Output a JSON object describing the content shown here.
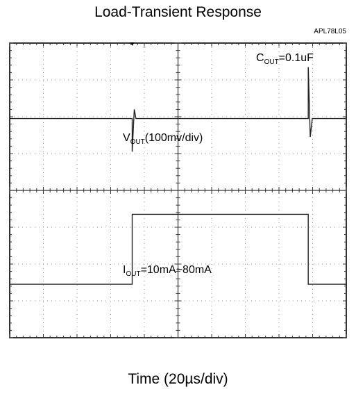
{
  "chart_data": {
    "type": "line",
    "title": "Load-Transient Response",
    "part_number": "APL78L05",
    "xlabel": "Time (20µs/div)",
    "grid": true,
    "divisions": {
      "x": 10,
      "y": 8
    },
    "x_unit": "div",
    "xlim": [
      0,
      10
    ],
    "series": [
      {
        "name": "VOUT",
        "label_main": "V",
        "label_sub": "OUT",
        "label_tail": "(100mv/div)",
        "scale": "100mv/div",
        "x": [
          0,
          3.64,
          3.64,
          3.7,
          3.75,
          8.87,
          8.87,
          8.93,
          8.99,
          10
        ],
        "y": [
          5.95,
          5.95,
          5.05,
          6.2,
          5.95,
          5.95,
          7.35,
          5.45,
          5.95,
          5.95
        ]
      },
      {
        "name": "IOUT",
        "label_main": "I",
        "label_sub": "OUT",
        "label_tail": "=10mA~80mA",
        "range": "10mA~80mA",
        "x": [
          0,
          3.64,
          3.64,
          8.87,
          8.87,
          10
        ],
        "y": [
          1.45,
          1.45,
          3.35,
          3.35,
          1.45,
          1.45
        ]
      }
    ],
    "annotations": [
      {
        "main": "C",
        "sub": "OUT",
        "tail": "=0.1uF"
      }
    ]
  }
}
